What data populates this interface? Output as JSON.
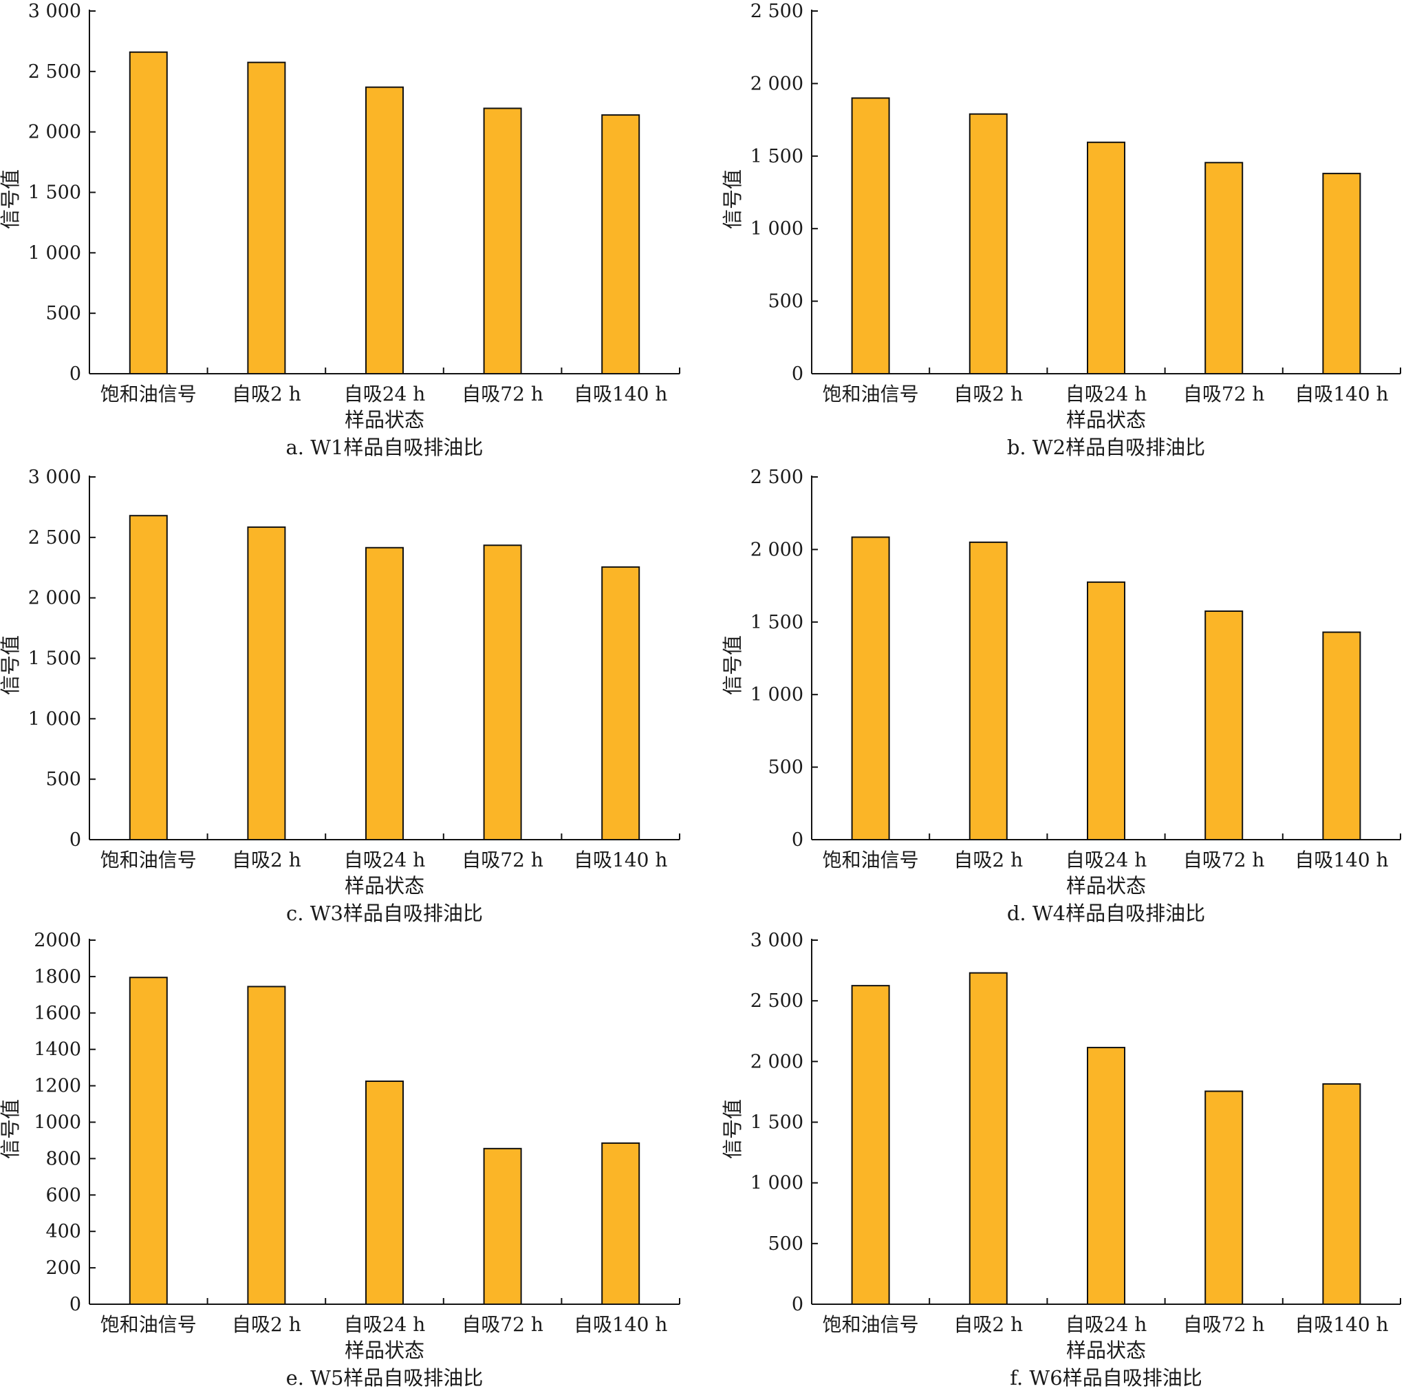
{
  "colors": {
    "bar_fill": "#FBB527",
    "bar_stroke": "#111111",
    "axis": "#111111"
  },
  "chart_data": [
    {
      "type": "bar",
      "caption": "a. W1样品自吸排油比",
      "xlabel": "样品状态",
      "ylabel": "信号值",
      "categories": [
        "饱和油信号",
        "自吸2 h",
        "自吸24 h",
        "自吸72 h",
        "自吸140 h"
      ],
      "values": [
        2660,
        2575,
        2370,
        2195,
        2140
      ],
      "ylim": [
        0,
        3000
      ],
      "yticks": [
        0,
        500,
        1000,
        1500,
        2000,
        2500,
        3000
      ],
      "ytick_labels": [
        "0",
        "500",
        "1 000",
        "1 500",
        "2 000",
        "2 500",
        "3 000"
      ],
      "grid": false,
      "legend": "none"
    },
    {
      "type": "bar",
      "caption": "b. W2样品自吸排油比",
      "xlabel": "样品状态",
      "ylabel": "信号值",
      "categories": [
        "饱和油信号",
        "自吸2 h",
        "自吸24 h",
        "自吸72 h",
        "自吸140 h"
      ],
      "values": [
        1900,
        1790,
        1595,
        1455,
        1380
      ],
      "ylim": [
        0,
        2500
      ],
      "yticks": [
        0,
        500,
        1000,
        1500,
        2000,
        2500
      ],
      "ytick_labels": [
        "0",
        "500",
        "1 000",
        "1 500",
        "2 000",
        "2 500"
      ],
      "grid": false,
      "legend": "none"
    },
    {
      "type": "bar",
      "caption": "c. W3样品自吸排油比",
      "xlabel": "样品状态",
      "ylabel": "信号值",
      "categories": [
        "饱和油信号",
        "自吸2 h",
        "自吸24 h",
        "自吸72 h",
        "自吸140 h"
      ],
      "values": [
        2680,
        2585,
        2415,
        2435,
        2255
      ],
      "ylim": [
        0,
        3000
      ],
      "yticks": [
        0,
        500,
        1000,
        1500,
        2000,
        2500,
        3000
      ],
      "ytick_labels": [
        "0",
        "500",
        "1 000",
        "1 500",
        "2 000",
        "2 500",
        "3 000"
      ],
      "grid": false,
      "legend": "none"
    },
    {
      "type": "bar",
      "caption": "d. W4样品自吸排油比",
      "xlabel": "样品状态",
      "ylabel": "信号值",
      "categories": [
        "饱和油信号",
        "自吸2 h",
        "自吸24 h",
        "自吸72 h",
        "自吸140 h"
      ],
      "values": [
        2085,
        2050,
        1775,
        1575,
        1430
      ],
      "ylim": [
        0,
        2500
      ],
      "yticks": [
        0,
        500,
        1000,
        1500,
        2000,
        2500
      ],
      "ytick_labels": [
        "0",
        "500",
        "1 000",
        "1 500",
        "2 000",
        "2 500"
      ],
      "grid": false,
      "legend": "none"
    },
    {
      "type": "bar",
      "caption": "e. W5样品自吸排油比",
      "xlabel": "样品状态",
      "ylabel": "信号值",
      "categories": [
        "饱和油信号",
        "自吸2 h",
        "自吸24 h",
        "自吸72 h",
        "自吸140 h"
      ],
      "values": [
        1795,
        1745,
        1225,
        855,
        885
      ],
      "ylim": [
        0,
        2000
      ],
      "yticks": [
        0,
        200,
        400,
        600,
        800,
        1000,
        1200,
        1400,
        1600,
        1800,
        2000
      ],
      "ytick_labels": [
        "0",
        "200",
        "400",
        "600",
        "800",
        "1000",
        "1200",
        "1400",
        "1600",
        "1800",
        "2000"
      ],
      "grid": false,
      "legend": "none"
    },
    {
      "type": "bar",
      "caption": "f. W6样品自吸排油比",
      "xlabel": "样品状态",
      "ylabel": "信号值",
      "categories": [
        "饱和油信号",
        "自吸2 h",
        "自吸24 h",
        "自吸72 h",
        "自吸140 h"
      ],
      "values": [
        2625,
        2730,
        2115,
        1755,
        1815
      ],
      "ylim": [
        0,
        3000
      ],
      "yticks": [
        0,
        500,
        1000,
        1500,
        2000,
        2500,
        3000
      ],
      "ytick_labels": [
        "0",
        "500",
        "1 000",
        "1 500",
        "2 000",
        "2 500",
        "3 000"
      ],
      "grid": false,
      "legend": "none"
    }
  ]
}
